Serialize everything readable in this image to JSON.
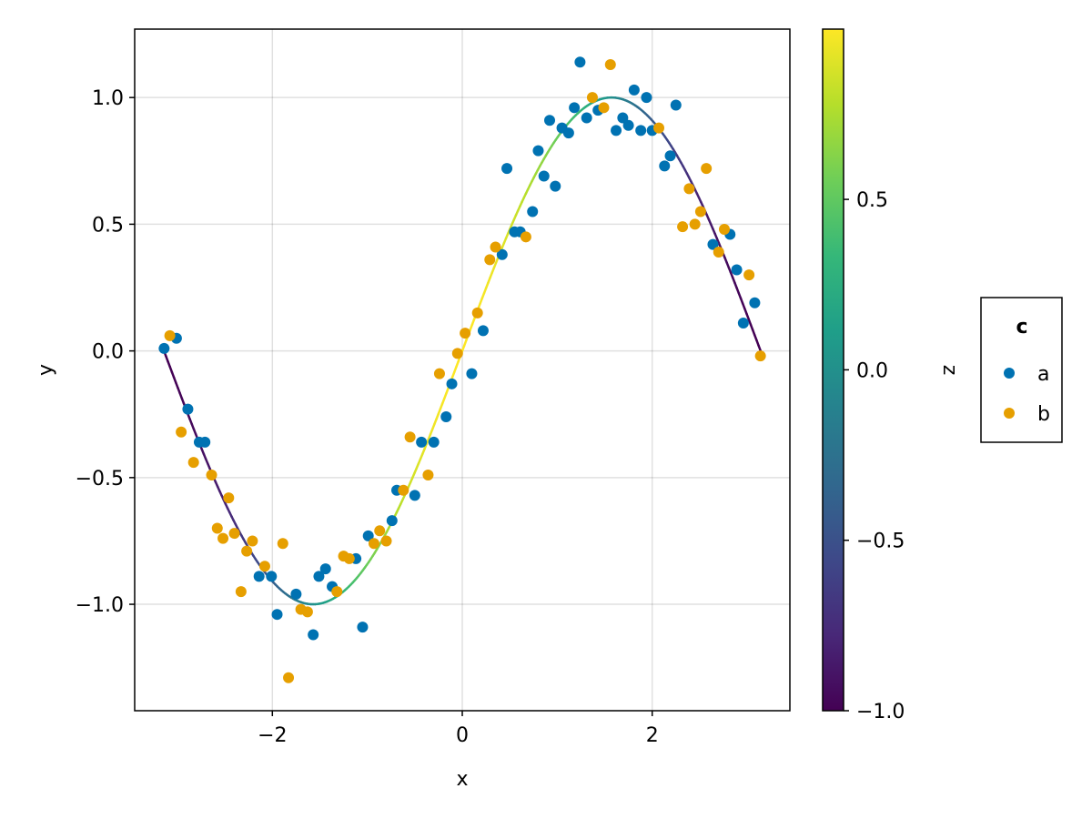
{
  "chart_data": {
    "type": "scatter",
    "xlabel": "x",
    "ylabel": "y",
    "xlim": [
      -3.45,
      3.45
    ],
    "ylim": [
      -1.42,
      1.27
    ],
    "x_ticks": [
      -2,
      0,
      2
    ],
    "y_ticks": [
      -1.0,
      -0.5,
      0.0,
      0.5,
      1.0
    ],
    "x_tick_labels": [
      "−2",
      "0",
      "2"
    ],
    "y_tick_labels": [
      "−1.0",
      "−0.5",
      "0.0",
      "0.5",
      "1.0"
    ],
    "grid": true,
    "line": {
      "function": "sin(x)",
      "x_range": [
        -3.14159,
        3.14159
      ],
      "color_by": "z",
      "z_function": "cos(x)"
    },
    "colorbar": {
      "label": "z",
      "range": [
        -1.0,
        0.9995
      ],
      "ticks": [
        -1.0,
        -0.5,
        0.0,
        0.5
      ],
      "tick_labels": [
        "−1.0",
        "−0.5",
        "0.0",
        "0.5"
      ],
      "colormap": "viridis"
    },
    "legend": {
      "title": "c",
      "placement": "right",
      "entries": [
        {
          "label": "a",
          "color": "#0072b2"
        },
        {
          "label": "b",
          "color": "#e69f00"
        }
      ]
    },
    "series": [
      {
        "name": "a",
        "color": "#0072b2",
        "points": [
          [
            -3.14,
            0.01
          ],
          [
            -3.01,
            0.05
          ],
          [
            -2.89,
            -0.23
          ],
          [
            -2.77,
            -0.36
          ],
          [
            -2.71,
            -0.36
          ],
          [
            -2.14,
            -0.89
          ],
          [
            -2.01,
            -0.89
          ],
          [
            -1.95,
            -1.04
          ],
          [
            -1.75,
            -0.96
          ],
          [
            -1.57,
            -1.12
          ],
          [
            -1.51,
            -0.89
          ],
          [
            -1.44,
            -0.86
          ],
          [
            -1.37,
            -0.93
          ],
          [
            -1.12,
            -0.82
          ],
          [
            -1.05,
            -1.09
          ],
          [
            -0.99,
            -0.73
          ],
          [
            -0.74,
            -0.67
          ],
          [
            -0.69,
            -0.55
          ],
          [
            -0.5,
            -0.57
          ],
          [
            -0.43,
            -0.36
          ],
          [
            -0.3,
            -0.36
          ],
          [
            -0.17,
            -0.26
          ],
          [
            -0.11,
            -0.13
          ],
          [
            0.1,
            -0.09
          ],
          [
            0.22,
            0.08
          ],
          [
            0.42,
            0.38
          ],
          [
            0.47,
            0.72
          ],
          [
            0.55,
            0.47
          ],
          [
            0.61,
            0.47
          ],
          [
            0.74,
            0.55
          ],
          [
            0.8,
            0.79
          ],
          [
            0.86,
            0.69
          ],
          [
            0.92,
            0.91
          ],
          [
            0.98,
            0.65
          ],
          [
            1.05,
            0.88
          ],
          [
            1.12,
            0.86
          ],
          [
            1.18,
            0.96
          ],
          [
            1.24,
            1.14
          ],
          [
            1.31,
            0.92
          ],
          [
            1.43,
            0.95
          ],
          [
            1.62,
            0.87
          ],
          [
            1.69,
            0.92
          ],
          [
            1.75,
            0.89
          ],
          [
            1.81,
            1.03
          ],
          [
            1.88,
            0.87
          ],
          [
            1.94,
            1.0
          ],
          [
            2.0,
            0.87
          ],
          [
            2.13,
            0.73
          ],
          [
            2.19,
            0.77
          ],
          [
            2.25,
            0.97
          ],
          [
            2.64,
            0.42
          ],
          [
            2.82,
            0.46
          ],
          [
            2.89,
            0.32
          ],
          [
            2.96,
            0.11
          ],
          [
            3.08,
            0.19
          ]
        ]
      },
      {
        "name": "b",
        "color": "#e69f00",
        "points": [
          [
            -3.08,
            0.06
          ],
          [
            -2.96,
            -0.32
          ],
          [
            -2.83,
            -0.44
          ],
          [
            -2.64,
            -0.49
          ],
          [
            -2.58,
            -0.7
          ],
          [
            -2.52,
            -0.74
          ],
          [
            -2.46,
            -0.58
          ],
          [
            -2.4,
            -0.72
          ],
          [
            -2.33,
            -0.95
          ],
          [
            -2.27,
            -0.79
          ],
          [
            -2.21,
            -0.75
          ],
          [
            -2.08,
            -0.85
          ],
          [
            -1.89,
            -0.76
          ],
          [
            -1.83,
            -1.29
          ],
          [
            -1.7,
            -1.02
          ],
          [
            -1.63,
            -1.03
          ],
          [
            -1.32,
            -0.95
          ],
          [
            -1.25,
            -0.81
          ],
          [
            -1.19,
            -0.82
          ],
          [
            -0.93,
            -0.76
          ],
          [
            -0.87,
            -0.71
          ],
          [
            -0.8,
            -0.75
          ],
          [
            -0.62,
            -0.55
          ],
          [
            -0.55,
            -0.34
          ],
          [
            -0.36,
            -0.49
          ],
          [
            -0.24,
            -0.09
          ],
          [
            -0.05,
            -0.01
          ],
          [
            0.03,
            0.07
          ],
          [
            0.16,
            0.15
          ],
          [
            0.29,
            0.36
          ],
          [
            0.35,
            0.41
          ],
          [
            0.67,
            0.45
          ],
          [
            1.37,
            1.0
          ],
          [
            1.49,
            0.96
          ],
          [
            1.56,
            1.13
          ],
          [
            2.07,
            0.88
          ],
          [
            2.32,
            0.49
          ],
          [
            2.39,
            0.64
          ],
          [
            2.45,
            0.5
          ],
          [
            2.51,
            0.55
          ],
          [
            2.57,
            0.72
          ],
          [
            2.7,
            0.39
          ],
          [
            2.76,
            0.48
          ],
          [
            3.02,
            0.3
          ],
          [
            3.14,
            -0.02
          ]
        ]
      }
    ]
  }
}
